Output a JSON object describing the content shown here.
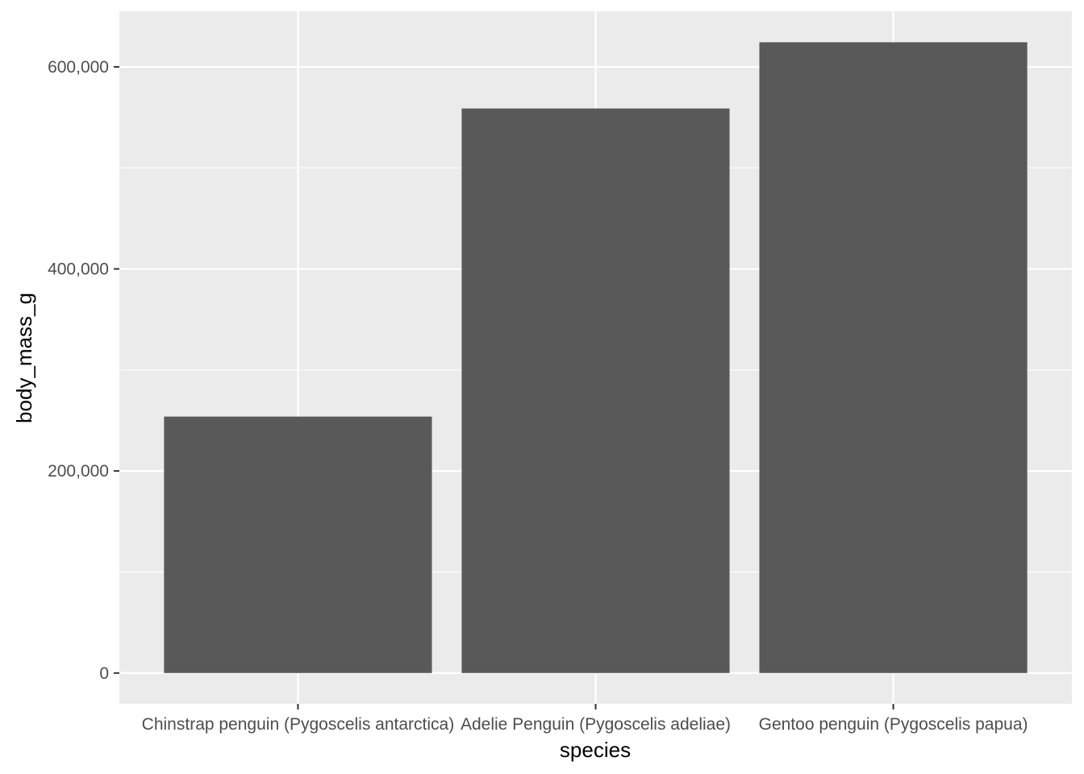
{
  "chart_data": {
    "type": "bar",
    "title": "",
    "xlabel": "species",
    "ylabel": "body_mass_g",
    "categories": [
      "Chinstrap penguin (Pygoscelis antarctica)",
      "Adelie Penguin (Pygoscelis adeliae)",
      "Gentoo penguin (Pygoscelis papua)"
    ],
    "values": [
      253850,
      558800,
      624350
    ],
    "ylim": [
      -30500,
      655000
    ],
    "y_ticks": [
      0,
      200000,
      400000,
      600000
    ],
    "y_tick_labels": [
      "0",
      "200,000",
      "400,000",
      "600,000"
    ],
    "y_minor_ticks": [
      100000,
      300000,
      500000
    ],
    "grid": true,
    "legend": "none",
    "colors": {
      "bar": "#595959",
      "panel_background": "#ebebeb",
      "grid": "#ffffff",
      "tick_text": "#4d4d4d",
      "axis_title": "#000000",
      "tick_mark": "#333333"
    }
  }
}
